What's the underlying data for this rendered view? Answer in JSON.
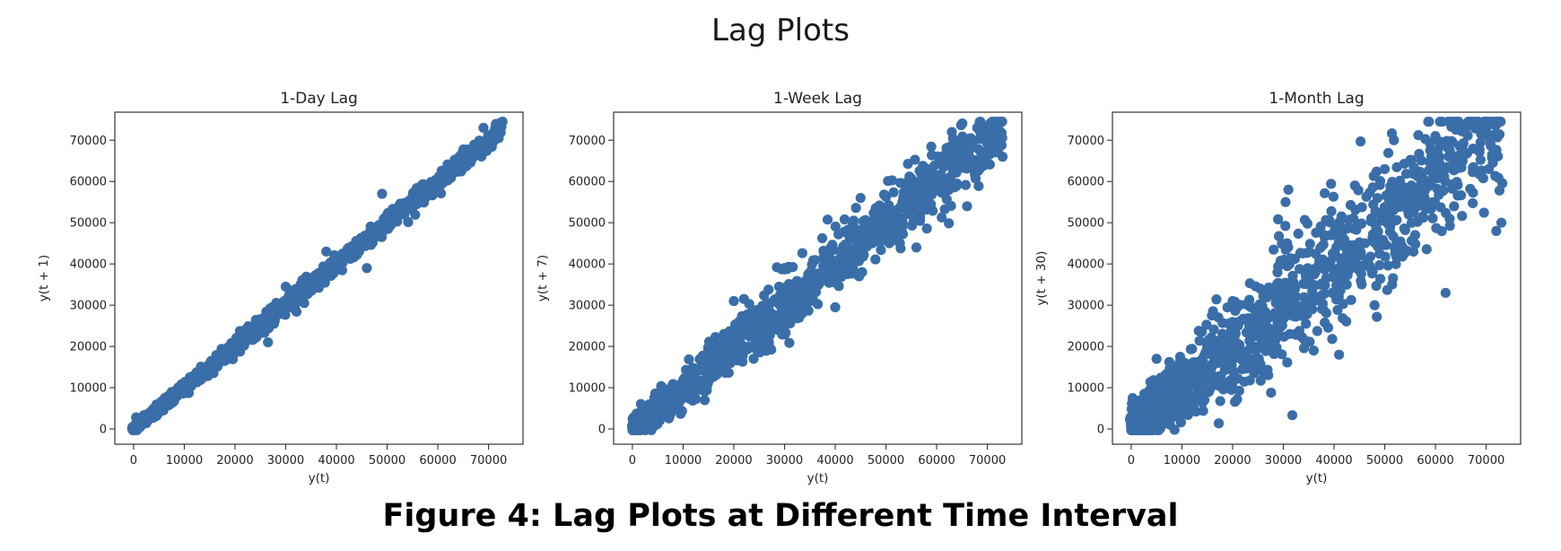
{
  "figure": {
    "suptitle": "Lag Plots",
    "caption": "Figure 4: Lag Plots at Different Time Interval"
  },
  "colors": {
    "marker": "#3a6ea8",
    "axes": "#333333",
    "background": "#ffffff"
  },
  "chart_data": [
    {
      "type": "scatter",
      "title": "1-Day Lag",
      "xlabel": "y(t)",
      "ylabel": "y(t + 1)",
      "lag": 1,
      "xlim": [
        -3700,
        76800
      ],
      "ylim": [
        -3700,
        76800
      ],
      "xticks": [
        0,
        10000,
        20000,
        30000,
        40000,
        50000,
        60000,
        70000
      ],
      "yticks": [
        0,
        10000,
        20000,
        30000,
        40000,
        50000,
        60000,
        70000
      ],
      "grid": false,
      "spread": 1200,
      "points": [
        [
          500,
          2800
        ],
        [
          8000,
          6800
        ],
        [
          38000,
          43000
        ],
        [
          49000,
          57000
        ],
        [
          46000,
          39000
        ],
        [
          69000,
          73000
        ],
        [
          72000,
          70500
        ],
        [
          30000,
          34500
        ],
        [
          25000,
          26500
        ],
        [
          26500,
          21000
        ]
      ]
    },
    {
      "type": "scatter",
      "title": "1-Week Lag",
      "xlabel": "y(t)",
      "ylabel": "y(t + 7)",
      "lag": 7,
      "xlim": [
        -3700,
        76800
      ],
      "ylim": [
        -3700,
        76800
      ],
      "xticks": [
        0,
        10000,
        20000,
        30000,
        40000,
        50000,
        60000,
        70000
      ],
      "yticks": [
        0,
        10000,
        20000,
        30000,
        40000,
        50000,
        60000,
        70000
      ],
      "grid": false,
      "spread": 3800,
      "points": [
        [
          500,
          3000
        ],
        [
          15000,
          17500
        ],
        [
          20000,
          31000
        ],
        [
          22000,
          31500
        ],
        [
          40000,
          29500
        ],
        [
          45000,
          56000
        ],
        [
          56000,
          44000
        ],
        [
          63000,
          72000
        ],
        [
          66000,
          54000
        ],
        [
          72000,
          71500
        ],
        [
          73000,
          66000
        ],
        [
          68000,
          73000
        ]
      ]
    },
    {
      "type": "scatter",
      "title": "1-Month Lag",
      "xlabel": "y(t)",
      "ylabel": "y(t + 30)",
      "lag": 30,
      "xlim": [
        -3700,
        76800
      ],
      "ylim": [
        -3700,
        76800
      ],
      "xticks": [
        0,
        10000,
        20000,
        30000,
        40000,
        50000,
        60000,
        70000
      ],
      "yticks": [
        0,
        10000,
        20000,
        30000,
        40000,
        50000,
        60000,
        70000
      ],
      "grid": false,
      "spread": 8000,
      "points": [
        [
          500,
          2500
        ],
        [
          5000,
          17000
        ],
        [
          20000,
          31000
        ],
        [
          31000,
          58000
        ],
        [
          36000,
          19000
        ],
        [
          41000,
          18000
        ],
        [
          50000,
          63000
        ],
        [
          60000,
          71000
        ],
        [
          62000,
          33000
        ],
        [
          66000,
          73000
        ],
        [
          69000,
          71500
        ],
        [
          73000,
          50000
        ],
        [
          72000,
          48000
        ],
        [
          48000,
          30000
        ],
        [
          56000,
          47000
        ]
      ]
    }
  ]
}
